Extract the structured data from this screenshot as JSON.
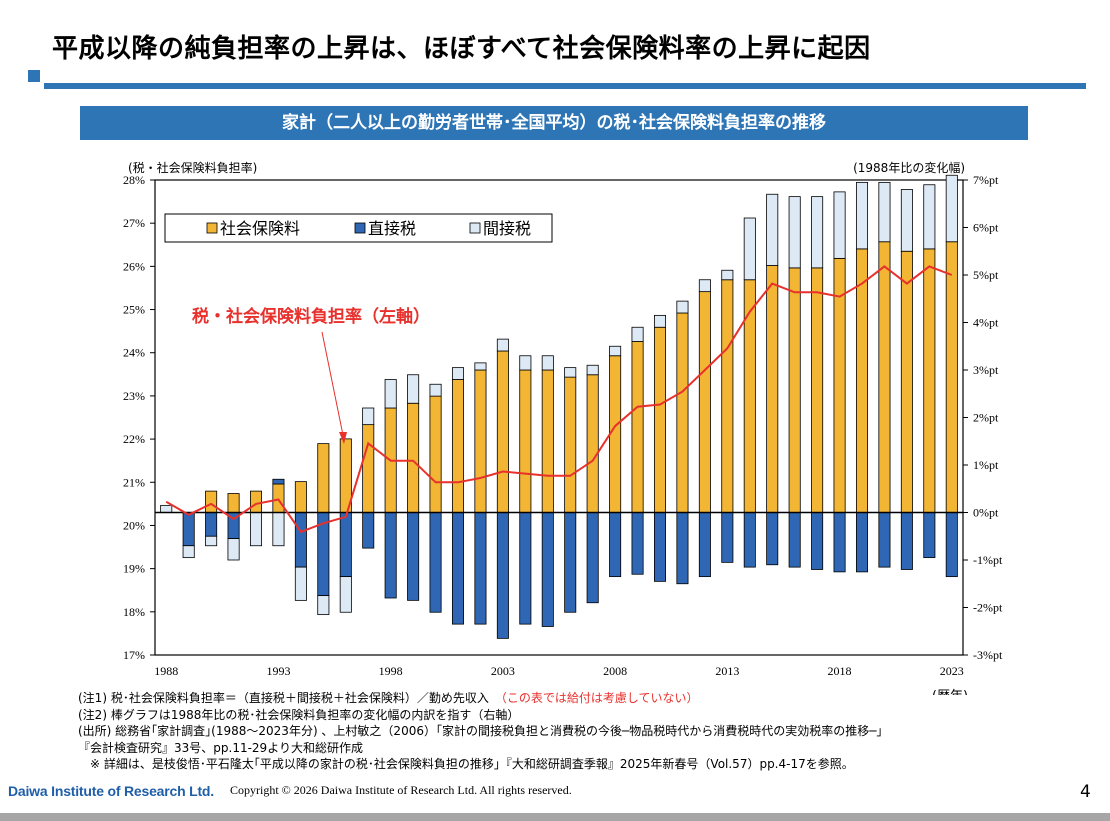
{
  "slide": {
    "title": "平成以降の純負担率の上昇は、ほぼすべて社会保険料率の上昇に起因",
    "chart_header": "家計（二人以上の勤労者世帯･全国平均）の税･社会保険料負担率の推移",
    "page_number": "4"
  },
  "notes": {
    "note1": "(注1) 税･社会保険料負担率＝（直接税＋間接税＋社会保険料）／勤め先収入",
    "note1_red": "（この表では給付は考慮していない）",
    "note2": "(注2) 棒グラフは1988年比の税･社会保険料負担率の変化幅の内訳を指す（右軸）",
    "source1": "(出所) 総務省｢家計調査｣(1988～2023年分) 、上村敏之（2006）｢家計の間接税負担と消費税の今後─物品税時代から消費税時代の実効税率の推移─｣",
    "source2": "『会計検査研究』33号、pp.11-29より大和総研作成",
    "detail": "※  詳細は、是枝俊悟･平石隆太｢平成以降の家計の税･社会保険料負担の推移｣『大和総研調査季報』2025年新春号（Vol.57）pp.4-17を参照。"
  },
  "footer": {
    "logo": "Daiwa Institute of Research Ltd.",
    "copyright": "Copyright © 2026 Daiwa Institute of Research Ltd. All rights reserved."
  },
  "colors": {
    "accent": "#2e75b6",
    "social": "#f2b534",
    "direct": "#2f67b4",
    "indirect": "#dde9f5",
    "line": "#e8302c",
    "annotation": "#e8302c"
  },
  "chart_data": {
    "type": "bar+line",
    "title": "家計（二人以上の勤労者世帯･全国平均）の税･社会保険料負担率の推移",
    "left_axis_label": "(税・社会保険料負担率)",
    "right_axis_label": "(1988年比の変化幅)",
    "x_unit_label": "(暦年)",
    "left_ylim": [
      17,
      28
    ],
    "right_ylim": [
      -3,
      7
    ],
    "left_ticks": [
      "17%",
      "18%",
      "19%",
      "20%",
      "21%",
      "22%",
      "23%",
      "24%",
      "25%",
      "26%",
      "27%",
      "28%"
    ],
    "right_ticks": [
      "-3%pt",
      "-2%pt",
      "-1%pt",
      "0%pt",
      "1%pt",
      "2%pt",
      "3%pt",
      "4%pt",
      "5%pt",
      "6%pt",
      "7%pt"
    ],
    "x_tick_labels": [
      "1988",
      "1993",
      "1998",
      "2003",
      "2008",
      "2013",
      "2018",
      "2023"
    ],
    "legend": [
      "社会保険料",
      "直接税",
      "間接税"
    ],
    "annotation": "税・社会保険料負担率（左軸）",
    "years": [
      1988,
      1989,
      1990,
      1991,
      1992,
      1993,
      1994,
      1995,
      1996,
      1997,
      1998,
      1999,
      2000,
      2001,
      2002,
      2003,
      2004,
      2005,
      2006,
      2007,
      2008,
      2009,
      2010,
      2011,
      2012,
      2013,
      2014,
      2015,
      2016,
      2017,
      2018,
      2019,
      2020,
      2021,
      2022,
      2023
    ],
    "series": [
      {
        "name": "社会保険料",
        "axis": "right",
        "unit": "%pt",
        "values": [
          0,
          0,
          0.45,
          0.4,
          0.45,
          0.6,
          0.65,
          1.45,
          1.55,
          1.85,
          2.2,
          2.3,
          2.45,
          2.8,
          3.0,
          3.4,
          3.0,
          3.0,
          2.85,
          2.9,
          3.3,
          3.6,
          3.9,
          4.2,
          4.65,
          4.9,
          4.9,
          5.2,
          5.15,
          5.15,
          5.35,
          5.55,
          5.7,
          5.5,
          5.55,
          5.7
        ]
      },
      {
        "name": "直接税",
        "axis": "right",
        "unit": "%pt",
        "values": [
          0,
          -0.7,
          -0.5,
          -0.55,
          0,
          0.1,
          -1.15,
          -1.75,
          -1.35,
          -0.75,
          -1.8,
          -1.85,
          -2.1,
          -2.35,
          -2.35,
          -2.65,
          -2.35,
          -2.4,
          -2.1,
          -1.9,
          -1.35,
          -1.3,
          -1.45,
          -1.5,
          -1.35,
          -1.05,
          -1.15,
          -1.1,
          -1.15,
          -1.2,
          -1.25,
          -1.25,
          -1.15,
          -1.2,
          -0.95,
          -1.35
        ]
      },
      {
        "name": "間接税",
        "axis": "right",
        "unit": "%pt",
        "values": [
          0.15,
          -0.25,
          -0.2,
          -0.45,
          -0.7,
          -0.7,
          -0.7,
          -0.4,
          -0.75,
          0.35,
          0.6,
          0.6,
          0.25,
          0.25,
          0.15,
          0.25,
          0.3,
          0.3,
          0.2,
          0.2,
          0.2,
          0.3,
          0.25,
          0.25,
          0.25,
          0.2,
          1.3,
          1.5,
          1.5,
          1.5,
          1.4,
          1.4,
          1.25,
          1.3,
          1.35,
          1.4
        ]
      },
      {
        "name": "税・社会保険料負担率",
        "axis": "left",
        "unit": "%",
        "type": "line",
        "values": [
          20.55,
          20.25,
          20.5,
          20.15,
          20.5,
          20.6,
          19.85,
          20.05,
          20.2,
          21.9,
          21.5,
          21.5,
          21.0,
          21.0,
          21.1,
          21.25,
          21.2,
          21.15,
          21.15,
          21.5,
          22.3,
          22.75,
          22.8,
          23.1,
          23.6,
          24.1,
          24.95,
          25.6,
          25.4,
          25.4,
          25.3,
          25.6,
          26.0,
          25.6,
          26.0,
          25.8
        ]
      }
    ]
  }
}
